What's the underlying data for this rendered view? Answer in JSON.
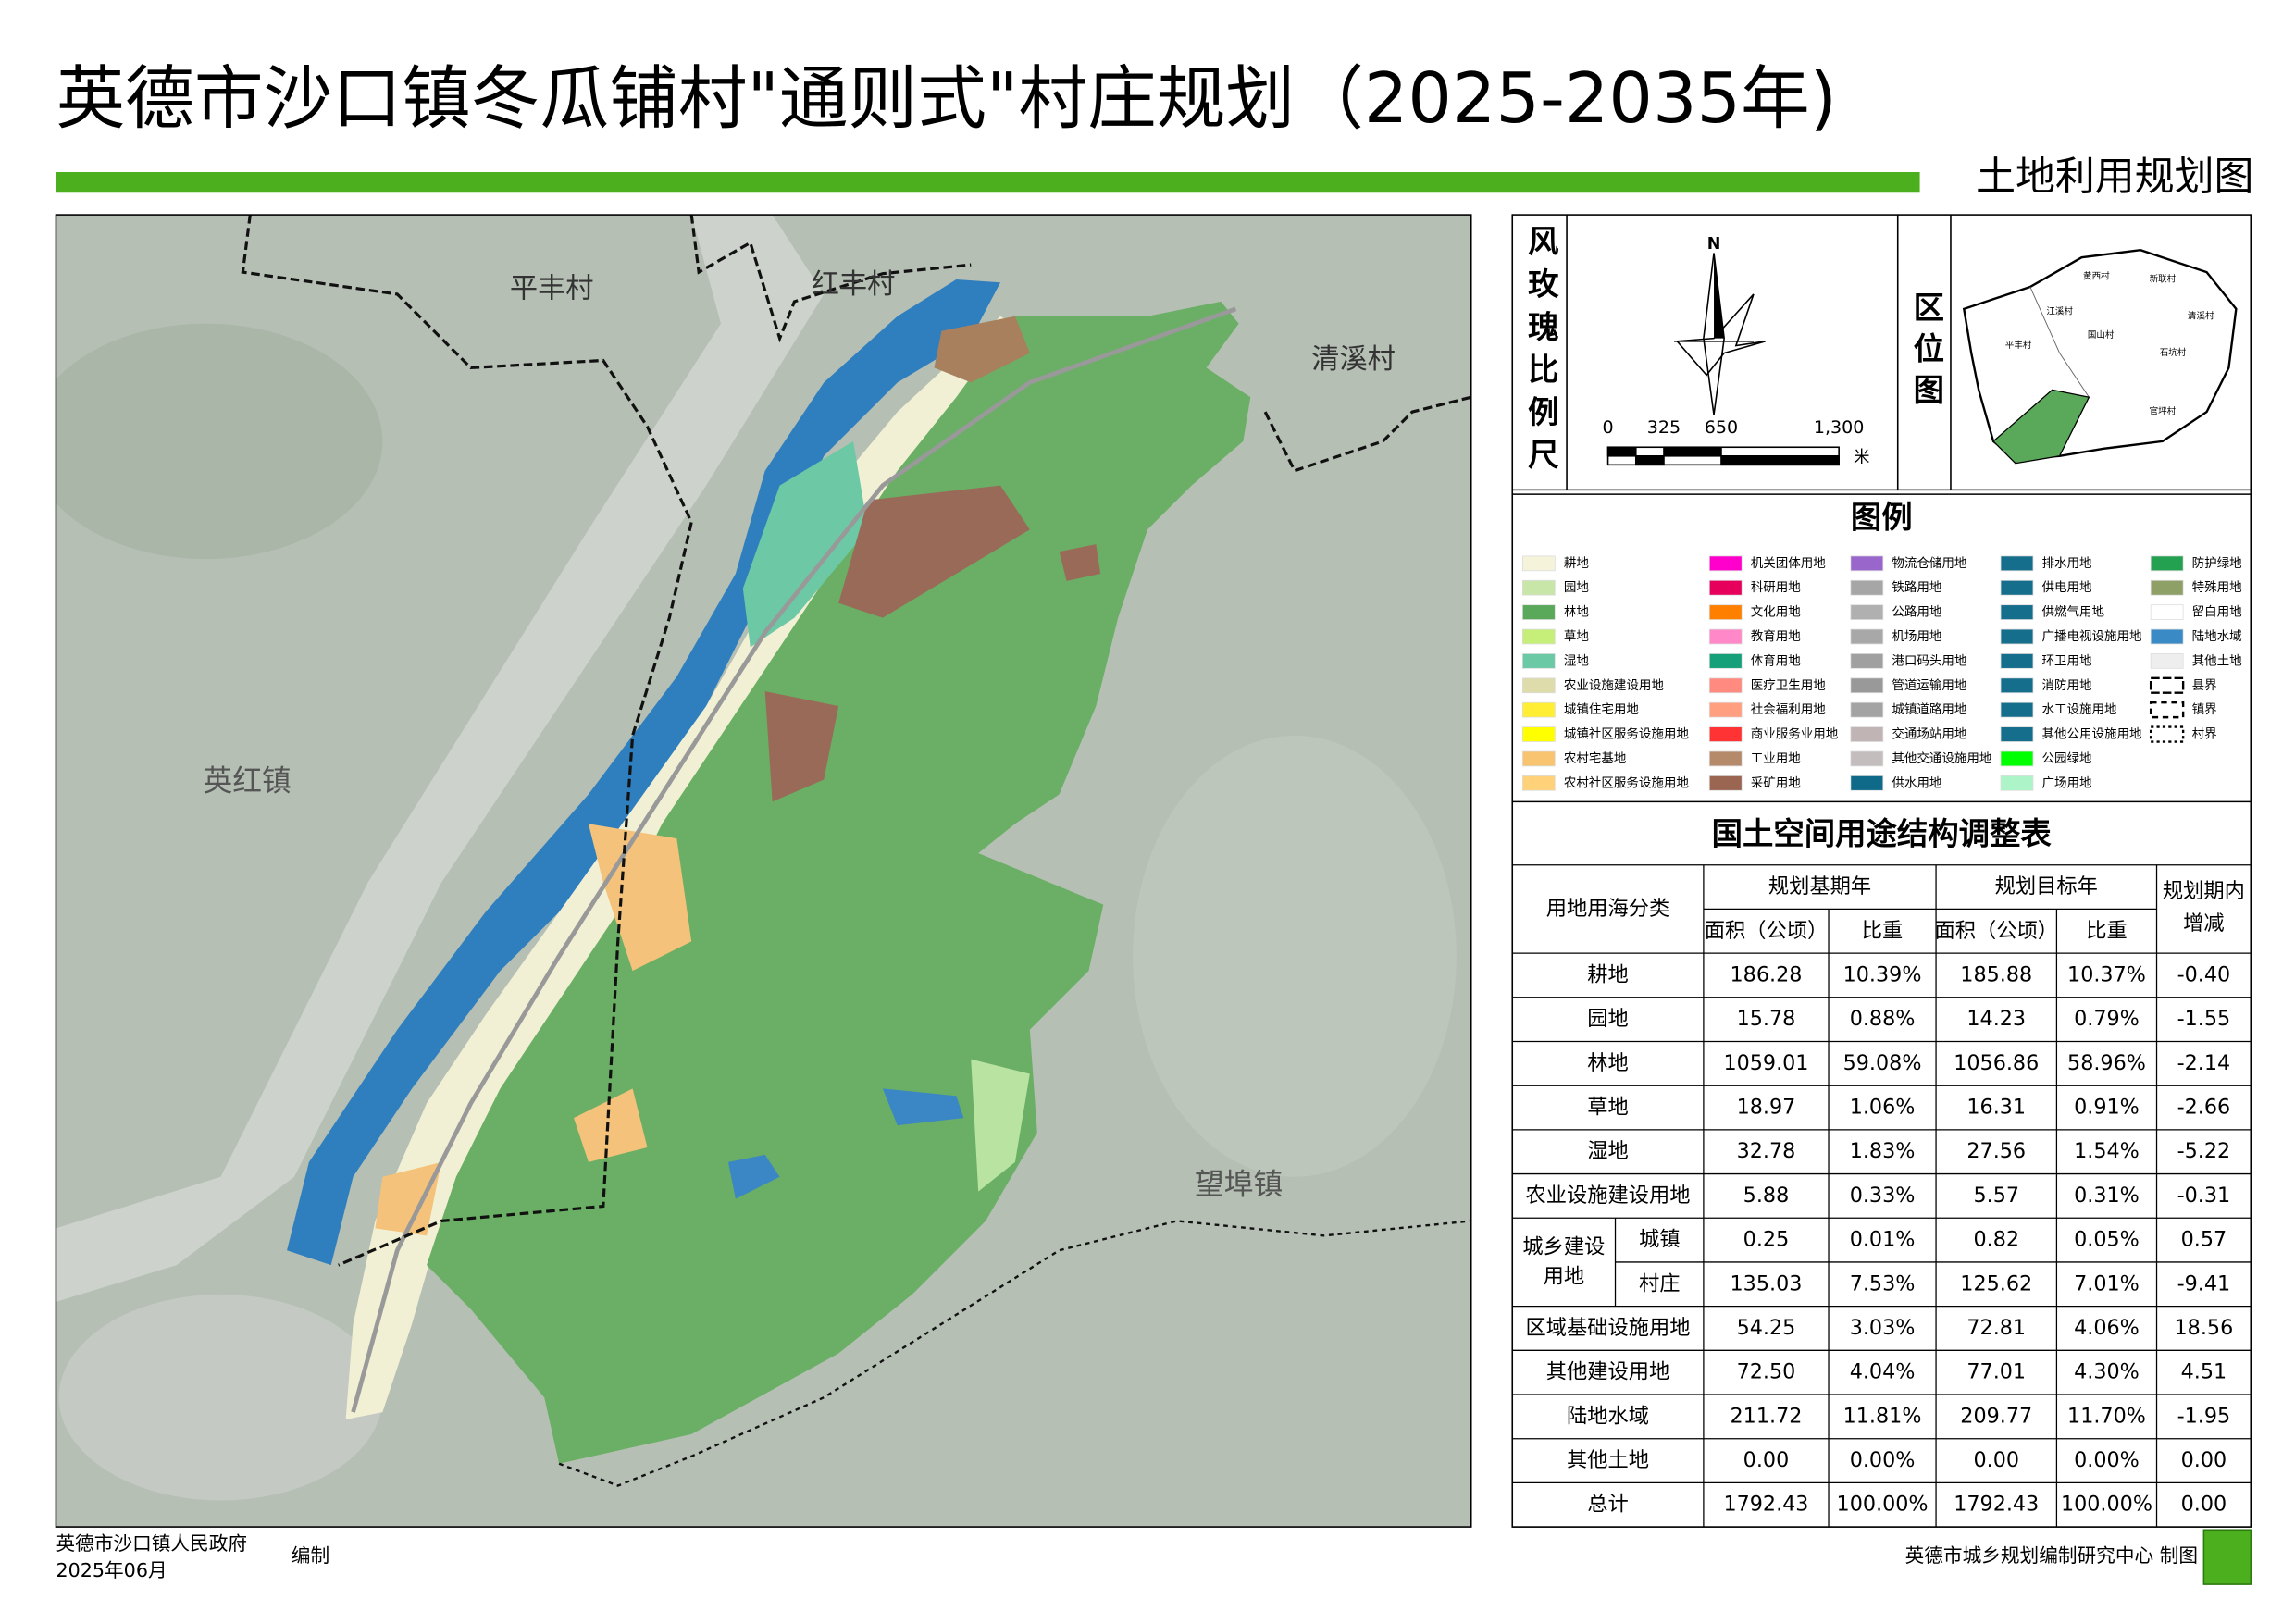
{
  "header": {
    "title": "英德市沙口镇冬瓜铺村\"通则式\"村庄规划（2025-2035年)",
    "subtitle": "土地利用规划图"
  },
  "map": {
    "labels": [
      "平丰村",
      "红丰村",
      "清溪村",
      "英红镇",
      "望埠镇"
    ]
  },
  "rose": {
    "label": "风玫瑰比例尺",
    "north": "N",
    "scale": [
      "0",
      "325",
      "650",
      "1,300"
    ],
    "unit": "米"
  },
  "location": {
    "label": "区位图",
    "labels": [
      "平丰村",
      "江溪村",
      "黄西村",
      "新联村",
      "石坑村",
      "国山村",
      "清溪村",
      "官坪村"
    ]
  },
  "legend": {
    "title": "图例",
    "items": [
      {
        "name": "耕地",
        "color": "#f5f3da"
      },
      {
        "name": "园地",
        "color": "#c8e6a8"
      },
      {
        "name": "林地",
        "color": "#5aa85a"
      },
      {
        "name": "草地",
        "color": "#c6ef7a"
      },
      {
        "name": "湿地",
        "color": "#6cc9a6"
      },
      {
        "name": "农业设施建设用地",
        "color": "#dedcaa"
      },
      {
        "name": "城镇住宅用地",
        "color": "#ffee33"
      },
      {
        "name": "城镇社区服务设施用地",
        "color": "#ffff00"
      },
      {
        "name": "农村宅基地",
        "color": "#f8c46f"
      },
      {
        "name": "农村社区服务设施用地",
        "color": "#ffd27a"
      },
      {
        "name": "机关团体用地",
        "color": "#ff00cc"
      },
      {
        "name": "科研用地",
        "color": "#e6005c"
      },
      {
        "name": "文化用地",
        "color": "#ff7f00"
      },
      {
        "name": "教育用地",
        "color": "#ff88c8"
      },
      {
        "name": "体育用地",
        "color": "#15a07a"
      },
      {
        "name": "医疗卫生用地",
        "color": "#ff8b80"
      },
      {
        "name": "社会福利用地",
        "color": "#ff9f7f"
      },
      {
        "name": "商业服务业用地",
        "color": "#ff3333"
      },
      {
        "name": "工业用地",
        "color": "#b48a6b"
      },
      {
        "name": "采矿用地",
        "color": "#9a6652"
      },
      {
        "name": "物流仓储用地",
        "color": "#9966cc"
      },
      {
        "name": "铁路用地",
        "color": "#a6a6a6"
      },
      {
        "name": "公路用地",
        "color": "#b0b0b0"
      },
      {
        "name": "机场用地",
        "color": "#a8a8a8"
      },
      {
        "name": "港口码头用地",
        "color": "#a0a0a0"
      },
      {
        "name": "管道运输用地",
        "color": "#999999"
      },
      {
        "name": "城镇道路用地",
        "color": "#a3a3a3"
      },
      {
        "name": "交通场站用地",
        "color": "#c0b4b4"
      },
      {
        "name": "其他交通设施用地",
        "color": "#c4bdbd"
      },
      {
        "name": "供水用地",
        "color": "#0f6a8a"
      },
      {
        "name": "排水用地",
        "color": "#156e8c"
      },
      {
        "name": "供电用地",
        "color": "#156e8c"
      },
      {
        "name": "供燃气用地",
        "color": "#156e8c"
      },
      {
        "name": "广播电视设施用地",
        "color": "#156e8c"
      },
      {
        "name": "环卫用地",
        "color": "#156e8c"
      },
      {
        "name": "消防用地",
        "color": "#156e8c"
      },
      {
        "name": "水工设施用地",
        "color": "#156e8c"
      },
      {
        "name": "其他公用设施用地",
        "color": "#156e8c"
      },
      {
        "name": "公园绿地",
        "color": "#00ff00"
      },
      {
        "name": "广场用地",
        "color": "#adf5c8"
      },
      {
        "name": "防护绿地",
        "color": "#23a050"
      },
      {
        "name": "特殊用地",
        "color": "#8ea066"
      },
      {
        "name": "留白用地",
        "color": "#ffffff"
      },
      {
        "name": "陆地水域",
        "color": "#3a8ac6"
      },
      {
        "name": "其他土地",
        "color": "#eeeeee"
      },
      {
        "name": "县界",
        "dash": "6,2"
      },
      {
        "name": "镇界",
        "dash": "4,3"
      },
      {
        "name": "村界",
        "dash": "2,2"
      }
    ]
  },
  "table": {
    "title": "国土空间用途结构调整表",
    "header": {
      "category": "用地用海分类",
      "base": "规划基期年",
      "target": "规划目标年",
      "change": [
        "规划期内",
        "增减"
      ],
      "area": "面积（公顷）",
      "ratio": "比重"
    },
    "rows": [
      {
        "name": "耕地",
        "cells": [
          "186.28",
          "10.39%",
          "185.88",
          "10.37%",
          "-0.40"
        ]
      },
      {
        "name": "园地",
        "cells": [
          "15.78",
          "0.88%",
          "14.23",
          "0.79%",
          "-1.55"
        ]
      },
      {
        "name": "林地",
        "cells": [
          "1059.01",
          "59.08%",
          "1056.86",
          "58.96%",
          "-2.14"
        ]
      },
      {
        "name": "草地",
        "cells": [
          "18.97",
          "1.06%",
          "16.31",
          "0.91%",
          "-2.66"
        ]
      },
      {
        "name": "湿地",
        "cells": [
          "32.78",
          "1.83%",
          "27.56",
          "1.54%",
          "-5.22"
        ]
      },
      {
        "name": "农业设施建设用地",
        "cells": [
          "5.88",
          "0.33%",
          "5.57",
          "0.31%",
          "-0.31"
        ]
      },
      {
        "name": [
          "城乡建设",
          "用地"
        ],
        "sub": [
          {
            "name": "城镇",
            "cells": [
              "0.25",
              "0.01%",
              "0.82",
              "0.05%",
              "0.57"
            ]
          },
          {
            "name": "村庄",
            "cells": [
              "135.03",
              "7.53%",
              "125.62",
              "7.01%",
              "-9.41"
            ]
          }
        ]
      },
      {
        "name": "区域基础设施用地",
        "cells": [
          "54.25",
          "3.03%",
          "72.81",
          "4.06%",
          "18.56"
        ]
      },
      {
        "name": "其他建设用地",
        "cells": [
          "72.50",
          "4.04%",
          "77.01",
          "4.30%",
          "4.51"
        ]
      },
      {
        "name": "陆地水域",
        "cells": [
          "211.72",
          "11.81%",
          "209.77",
          "11.70%",
          "-1.95"
        ]
      },
      {
        "name": "其他土地",
        "cells": [
          "0.00",
          "0.00%",
          "0.00",
          "0.00%",
          "0.00"
        ]
      },
      {
        "name": "总计",
        "cells": [
          "1792.43",
          "100.00%",
          "1792.43",
          "100.00%",
          "0.00"
        ]
      }
    ]
  },
  "footer": {
    "org": "英德市沙口镇人民政府",
    "date": "2025年06月",
    "action": "编制",
    "maker": "英德市城乡规划编制研究中心 制图"
  }
}
